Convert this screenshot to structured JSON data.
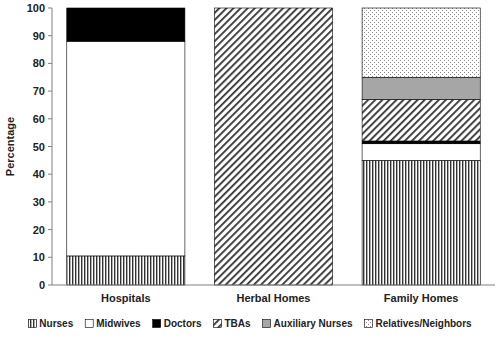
{
  "chart_data": {
    "type": "bar",
    "stacked": true,
    "grid": false,
    "legend": "bottom",
    "y_label": "Percentage",
    "categories": [
      "Hospitals",
      "Herbal Homes",
      "Family Homes"
    ],
    "ylim": [
      0,
      100
    ],
    "yticks": [
      0,
      10,
      20,
      30,
      40,
      50,
      60,
      70,
      80,
      90,
      100
    ],
    "series": [
      {
        "name": "Nurses",
        "color": "#333333",
        "values": [
          10.5,
          0,
          45
        ]
      },
      {
        "name": "Midwives",
        "color": "#ffffff",
        "values": [
          77.5,
          0,
          6
        ]
      },
      {
        "name": "Doctors",
        "color": "#000000",
        "values": [
          12,
          0,
          1
        ]
      },
      {
        "name": "TBAs",
        "color": "#333333",
        "values": [
          0,
          100,
          15
        ]
      },
      {
        "name": "Auxiliary Nurses",
        "color": "#a6a6a6",
        "values": [
          0,
          0,
          8
        ]
      },
      {
        "name": "Relatives/Neighbors",
        "color": "#8c8c8c",
        "values": [
          0,
          0,
          25
        ]
      }
    ]
  }
}
